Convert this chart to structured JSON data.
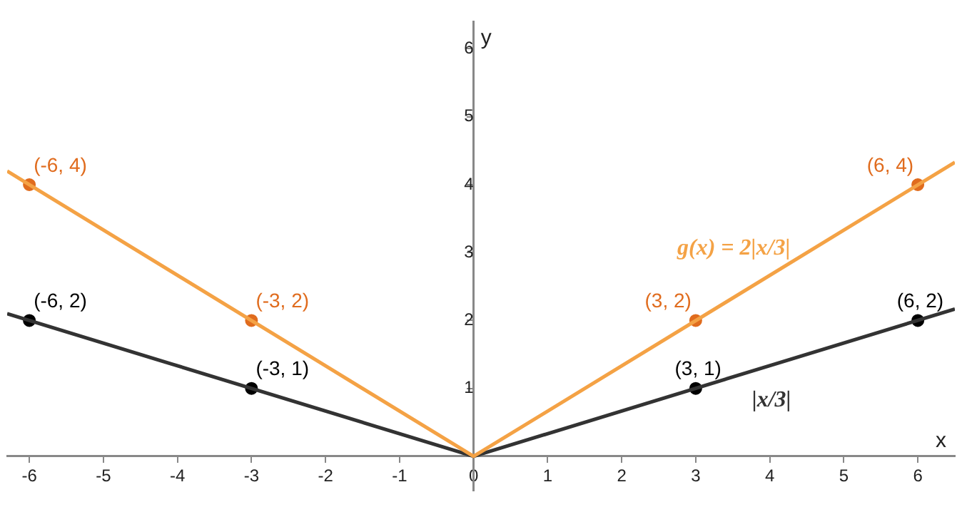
{
  "chart_data": {
    "type": "line",
    "xlabel": "x",
    "ylabel": "y",
    "xlim": [
      -6.3,
      6.5
    ],
    "ylim": [
      -0.5,
      6.4
    ],
    "xticks": [
      -6,
      -5,
      -4,
      -3,
      -2,
      -1,
      0,
      1,
      2,
      3,
      4,
      5,
      6
    ],
    "yticks": [
      1,
      2,
      3,
      4,
      5,
      6
    ],
    "grid": false,
    "legend": false,
    "series": [
      {
        "type": "line",
        "name": "g(x) = 2|x/3|",
        "color": "#f4a245",
        "x": [
          -6.3,
          0,
          6.5
        ],
        "values": [
          4.2,
          0,
          4.33
        ],
        "marker": "none"
      },
      {
        "type": "line",
        "name": "|x/3|",
        "color": "#333333",
        "x": [
          -6.3,
          0,
          6.5
        ],
        "values": [
          2.1,
          0,
          2.17
        ],
        "marker": "none"
      },
      {
        "type": "scatter",
        "color": "#e06c1e",
        "x": [
          -6,
          -3,
          3,
          6
        ],
        "values": [
          4,
          2,
          2,
          4
        ],
        "marker": "circle",
        "value_labels": [
          "(-6, 4)",
          "(-3, 2)",
          "(3, 2)",
          "(6, 4)"
        ]
      },
      {
        "type": "scatter",
        "color": "#000000",
        "x": [
          -6,
          -3,
          3,
          6
        ],
        "values": [
          2,
          1,
          1,
          2
        ],
        "marker": "circle",
        "value_labels": [
          "(-6, 2)",
          "(-3, 1)",
          "(3, 1)",
          "(6, 2)"
        ]
      }
    ]
  }
}
